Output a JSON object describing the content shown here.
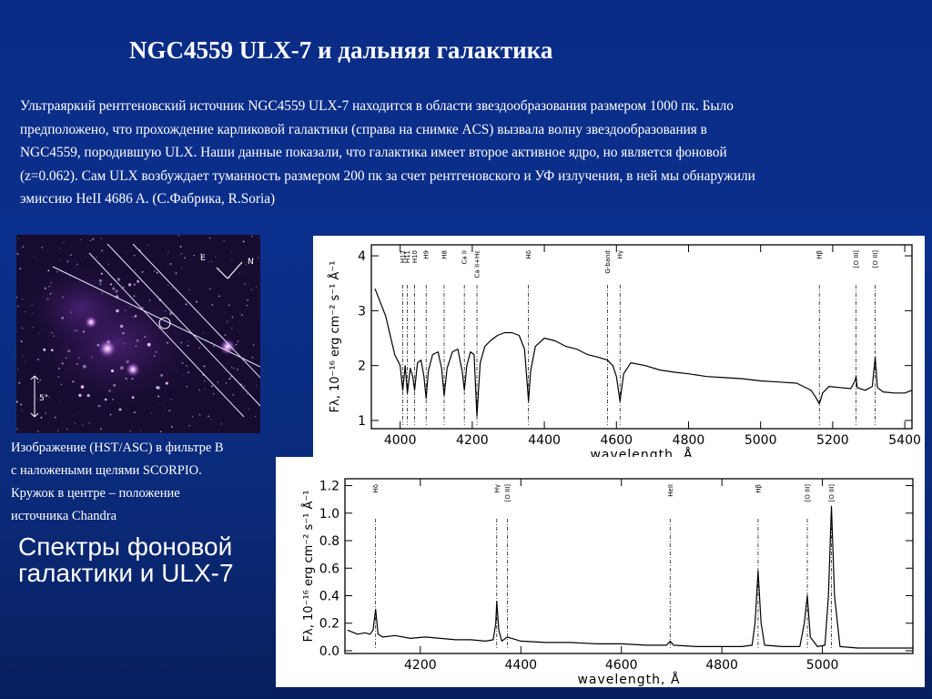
{
  "slide": {
    "title": "NGC4559 ULX-7 и дальняя галактика",
    "intro_lines": [
      "Ультраяркий рентгеновский источник NGC4559 ULX-7 находится в области звездообразования размером 1000 пк. Было",
      "предположено, что прохождение карликовой галактики (справа на снимке ACS) вызвала волну звездообразования в",
      "NGC4559, породившую ULX. Наши данные показали, что галактика имеет второе активное ядро, но является фоновой",
      "(z=0.062). Сам ULX возбуждает туманность размером 200 пк за счет рентгеновского и УФ излучения, в ней мы обнаружили",
      "эмиссию HeII 4686 A.  (С.Фабрика, R.Soria)"
    ],
    "caption_lines": [
      "Изображение  (HST/ASC) в фильтре B",
      "с наложеными щелями SCORPIO.",
      "Кружок в центре – положение",
      "источника Chandra"
    ],
    "subtitle_lines": [
      "Спектры фоновой",
      "галактики и ULX-7"
    ]
  },
  "hst_image": {
    "compass_e": "E",
    "compass_n": "N",
    "scale_label": "5\""
  },
  "chart_data": [
    {
      "type": "line",
      "name": "background-galaxy-spectrum",
      "xlabel": "wavelength, Å",
      "ylabel": "Fλ, 10⁻¹⁶ erg cm⁻² s⁻¹ Å⁻¹",
      "xlim": [
        3920,
        5420
      ],
      "ylim": [
        0.85,
        4.2
      ],
      "xticks": [
        4000,
        4200,
        4400,
        4600,
        4800,
        5000,
        5200,
        5400
      ],
      "yticks": [
        1,
        2,
        3,
        4
      ],
      "line_markers": [
        {
          "label": "H12",
          "x": 4007
        },
        {
          "label": "H11",
          "x": 4020
        },
        {
          "label": "H10",
          "x": 4040
        },
        {
          "label": "H9",
          "x": 4072
        },
        {
          "label": "H8",
          "x": 4122
        },
        {
          "label": "Ca II",
          "x": 4178
        },
        {
          "label": "Ca II+Hε",
          "x": 4213
        },
        {
          "label": "Hδ",
          "x": 4356
        },
        {
          "label": "G-band",
          "x": 4575
        },
        {
          "label": "Hγ",
          "x": 4610
        },
        {
          "label": "Hβ",
          "x": 5163
        },
        {
          "label": "[O III]",
          "x": 5265
        },
        {
          "label": "[O III]",
          "x": 5318
        }
      ],
      "x": [
        3930,
        3960,
        3985,
        4000,
        4007,
        4014,
        4020,
        4028,
        4035,
        4040,
        4048,
        4058,
        4066,
        4072,
        4078,
        4090,
        4105,
        4115,
        4122,
        4130,
        4145,
        4160,
        4172,
        4178,
        4185,
        4195,
        4205,
        4213,
        4222,
        4235,
        4250,
        4270,
        4290,
        4310,
        4330,
        4345,
        4352,
        4356,
        4362,
        4375,
        4400,
        4430,
        4460,
        4490,
        4520,
        4550,
        4575,
        4590,
        4600,
        4610,
        4620,
        4640,
        4680,
        4720,
        4760,
        4800,
        4850,
        4900,
        4950,
        5000,
        5050,
        5100,
        5140,
        5155,
        5163,
        5172,
        5190,
        5220,
        5250,
        5262,
        5265,
        5268,
        5290,
        5310,
        5318,
        5324,
        5340,
        5370,
        5400,
        5420
      ],
      "y": [
        3.4,
        2.9,
        2.2,
        2.0,
        1.55,
        2.0,
        1.5,
        1.95,
        1.8,
        1.55,
        2.05,
        2.1,
        1.8,
        1.4,
        1.9,
        2.2,
        2.25,
        1.95,
        1.45,
        1.95,
        2.25,
        2.3,
        1.9,
        1.55,
        2.0,
        2.25,
        2.2,
        1.08,
        2.05,
        2.35,
        2.45,
        2.55,
        2.6,
        2.6,
        2.55,
        2.3,
        1.7,
        1.35,
        1.9,
        2.35,
        2.5,
        2.45,
        2.35,
        2.3,
        2.2,
        2.15,
        2.1,
        2.0,
        1.8,
        1.35,
        1.85,
        2.05,
        2.0,
        1.92,
        1.88,
        1.85,
        1.8,
        1.78,
        1.76,
        1.72,
        1.7,
        1.68,
        1.55,
        1.4,
        1.3,
        1.5,
        1.62,
        1.6,
        1.58,
        1.72,
        1.8,
        1.6,
        1.55,
        1.62,
        2.15,
        1.6,
        1.52,
        1.5,
        1.5,
        1.55
      ]
    },
    {
      "type": "line",
      "name": "ulx-7-spectrum",
      "xlabel": "wavelength, Å",
      "ylabel": "Fλ, 10⁻¹⁶ erg cm⁻² s⁻¹ Å⁻¹",
      "xlim": [
        4050,
        5180
      ],
      "ylim": [
        -0.02,
        1.25
      ],
      "xticks": [
        4200,
        4400,
        4600,
        4800,
        5000
      ],
      "yticks": [
        0.0,
        0.2,
        0.4,
        0.6,
        0.8,
        1.0,
        1.2
      ],
      "line_markers": [
        {
          "label": "Hδ",
          "x": 4111
        },
        {
          "label": "Hγ",
          "x": 4352
        },
        {
          "label": "[O III]",
          "x": 4373
        },
        {
          "label": "HeII",
          "x": 4697
        },
        {
          "label": "Hβ",
          "x": 4872
        },
        {
          "label": "[O III]",
          "x": 4970
        },
        {
          "label": "[O III]",
          "x": 5018
        }
      ],
      "x": [
        4055,
        4075,
        4090,
        4100,
        4106,
        4111,
        4116,
        4125,
        4150,
        4180,
        4210,
        4240,
        4270,
        4300,
        4330,
        4345,
        4350,
        4352,
        4356,
        4362,
        4373,
        4400,
        4450,
        4500,
        4550,
        4600,
        4650,
        4690,
        4697,
        4704,
        4750,
        4800,
        4840,
        4860,
        4866,
        4872,
        4878,
        4885,
        4920,
        4955,
        4964,
        4970,
        4976,
        4990,
        5005,
        5012,
        5018,
        5024,
        5035,
        5070,
        5110,
        5150,
        5180
      ],
      "y": [
        0.15,
        0.12,
        0.13,
        0.12,
        0.15,
        0.3,
        0.12,
        0.1,
        0.11,
        0.09,
        0.1,
        0.09,
        0.08,
        0.08,
        0.07,
        0.08,
        0.2,
        0.36,
        0.15,
        0.07,
        0.1,
        0.07,
        0.06,
        0.06,
        0.05,
        0.05,
        0.04,
        0.04,
        0.07,
        0.04,
        0.03,
        0.03,
        0.03,
        0.04,
        0.2,
        0.58,
        0.2,
        0.04,
        0.03,
        0.03,
        0.2,
        0.4,
        0.1,
        0.03,
        0.04,
        0.4,
        1.05,
        0.4,
        0.03,
        0.02,
        0.02,
        0.02,
        0.02
      ]
    }
  ]
}
